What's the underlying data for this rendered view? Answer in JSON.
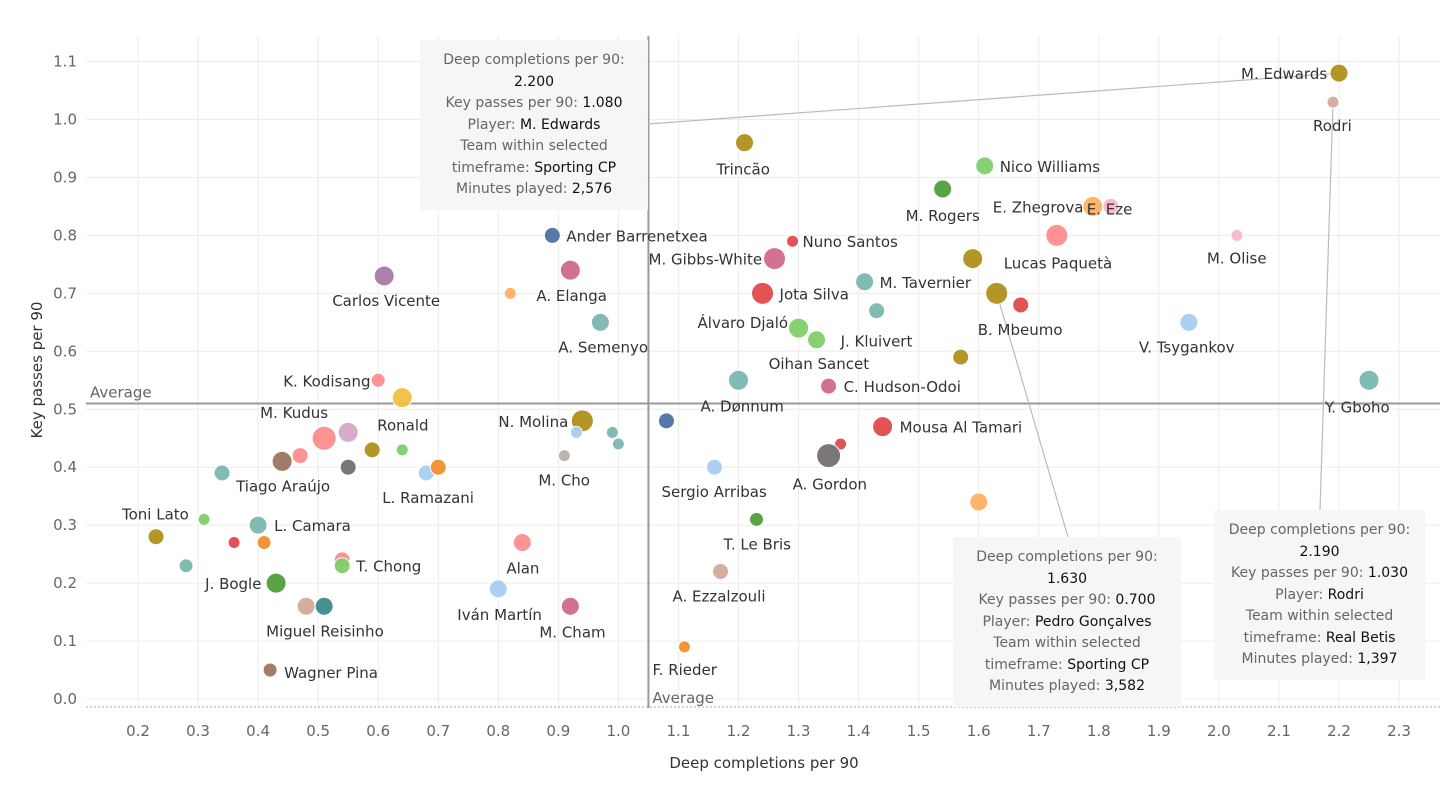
{
  "chart_data": {
    "type": "scatter",
    "xlabel": "Deep completions per 90",
    "ylabel": "Key passes per 90",
    "xlim": [
      0.09,
      2.37
    ],
    "ylim": [
      -0.015,
      1.16
    ],
    "x_ticks": [
      "0.2",
      "0.3",
      "0.4",
      "0.5",
      "0.6",
      "0.7",
      "0.8",
      "0.9",
      "1.0",
      "1.1",
      "1.2",
      "1.3",
      "1.4",
      "1.5",
      "1.6",
      "1.7",
      "1.8",
      "1.9",
      "2.0",
      "2.1",
      "2.2",
      "2.3"
    ],
    "y_ticks": [
      "0.0",
      "0.1",
      "0.2",
      "0.3",
      "0.4",
      "0.5",
      "0.6",
      "0.7",
      "0.8",
      "0.9",
      "1.0",
      "1.1"
    ],
    "grid": true,
    "averages": {
      "x": 1.05,
      "y": 0.51,
      "x_label": "Average",
      "y_label": "Average"
    },
    "points": [
      {
        "x": 2.2,
        "y": 1.08,
        "r": 9,
        "color": "#b0901a",
        "label": "M. Edwards",
        "lx": -98,
        "ly": 6
      },
      {
        "x": 2.19,
        "y": 1.03,
        "r": 6,
        "color": "#d4a99a",
        "label": "Rodri",
        "lx": -20,
        "ly": 29
      },
      {
        "x": 1.21,
        "y": 0.96,
        "r": 9,
        "color": "#b0901a",
        "label": "Trincão",
        "lx": -28,
        "ly": 32
      },
      {
        "x": 1.61,
        "y": 0.92,
        "r": 9,
        "color": "#7fd06a",
        "label": "Nico Williams",
        "lx": 15,
        "ly": 6
      },
      {
        "x": 1.54,
        "y": 0.88,
        "r": 9,
        "color": "#4f9f3a",
        "label": "M. Rogers",
        "lx": -37,
        "ly": 32
      },
      {
        "x": 1.79,
        "y": 0.85,
        "r": 10,
        "color": "#ffb060",
        "label": "E. Zhegrova",
        "lx": -100,
        "ly": 6
      },
      {
        "x": 1.82,
        "y": 0.85,
        "r": 8,
        "color": "#f9b8c8",
        "label": "",
        "lx": 0,
        "ly": 0
      },
      {
        "x": 1.73,
        "y": 0.8,
        "r": 11,
        "color": "#ff8c8c",
        "label": "E. Eze",
        "lx": 30,
        "ly": -21
      },
      {
        "x": 2.03,
        "y": 0.8,
        "r": 6,
        "color": "#f9b8c8",
        "label": "M. Olise",
        "lx": -30,
        "ly": 28
      },
      {
        "x": 1.59,
        "y": 0.76,
        "r": 10,
        "color": "#b0901a",
        "label": "Lucas Paquetà",
        "lx": 31,
        "ly": 10
      },
      {
        "x": 0.89,
        "y": 0.8,
        "r": 8,
        "color": "#4d72a8",
        "label": "Ander Barrenetxea",
        "lx": 14,
        "ly": 6
      },
      {
        "x": 1.29,
        "y": 0.79,
        "r": 6,
        "color": "#e04a4a",
        "label": "Nuno Santos",
        "lx": 10,
        "ly": 6
      },
      {
        "x": 1.26,
        "y": 0.76,
        "r": 11,
        "color": "#d06a8a",
        "label": "M. Gibbs-White",
        "lx": -126,
        "ly": 6
      },
      {
        "x": 0.92,
        "y": 0.74,
        "r": 10,
        "color": "#d06a8a",
        "label": "A. Elanga",
        "lx": -34,
        "ly": 31
      },
      {
        "x": 0.61,
        "y": 0.73,
        "r": 10,
        "color": "#a87aa8",
        "label": "Carlos Vicente",
        "lx": -52,
        "ly": 30
      },
      {
        "x": 0.82,
        "y": 0.7,
        "r": 6,
        "color": "#ffb060",
        "label": "",
        "lx": 0,
        "ly": 0
      },
      {
        "x": 1.24,
        "y": 0.7,
        "r": 11,
        "color": "#e04a4a",
        "label": "Jota Silva",
        "lx": 17,
        "ly": 6
      },
      {
        "x": 1.41,
        "y": 0.72,
        "r": 9,
        "color": "#7ab8b0",
        "label": "M. Tavernier",
        "lx": 15,
        "ly": 6
      },
      {
        "x": 1.43,
        "y": 0.67,
        "r": 8,
        "color": "#7ab8b0",
        "label": "",
        "lx": 0,
        "ly": 0
      },
      {
        "x": 1.63,
        "y": 0.7,
        "r": 11,
        "color": "#b0901a",
        "label": "",
        "lx": 0,
        "ly": 0
      },
      {
        "x": 1.67,
        "y": 0.68,
        "r": 8,
        "color": "#e04a4a",
        "label": "B. Mbeumo",
        "lx": -43,
        "ly": 30
      },
      {
        "x": 1.95,
        "y": 0.65,
        "r": 9,
        "color": "#a8cdf0",
        "label": "V. Tsygankov",
        "lx": -50,
        "ly": 30
      },
      {
        "x": 0.97,
        "y": 0.65,
        "r": 9,
        "color": "#7ab8b0",
        "label": "A. Semenyo",
        "lx": -42,
        "ly": 30
      },
      {
        "x": 1.3,
        "y": 0.64,
        "r": 10,
        "color": "#7fd06a",
        "label": "Álvaro Djaló",
        "lx": -101,
        "ly": 0
      },
      {
        "x": 1.33,
        "y": 0.62,
        "r": 9,
        "color": "#7fd06a",
        "label": "J. Kluivert",
        "lx": 24,
        "ly": 7
      },
      {
        "x": 1.57,
        "y": 0.59,
        "r": 8,
        "color": "#b0901a",
        "label": "",
        "lx": 0,
        "ly": 0
      },
      {
        "x": 1.35,
        "y": 0.54,
        "r": 8,
        "color": "#d06a8a",
        "label": "C. Hudson-Odoi",
        "lx": 15,
        "ly": 6
      },
      {
        "x": 1.35,
        "y": 0.54,
        "r": 0,
        "color": "#d06a8a",
        "label": "Oihan Sancet",
        "lx": -60,
        "ly": -17
      },
      {
        "x": 1.2,
        "y": 0.55,
        "r": 10,
        "color": "#7ab8b0",
        "label": "A. Dønnum",
        "lx": -38,
        "ly": 31
      },
      {
        "x": 2.25,
        "y": 0.55,
        "r": 10,
        "color": "#7ab8b0",
        "label": "Y. Gboho",
        "lx": -44,
        "ly": 32
      },
      {
        "x": 0.6,
        "y": 0.55,
        "r": 7,
        "color": "#ff8c8c",
        "label": "K. Kodisang",
        "lx": -95,
        "ly": 6
      },
      {
        "x": 0.64,
        "y": 0.52,
        "r": 10,
        "color": "#f0c040",
        "label": "Ronald",
        "lx": -25,
        "ly": 33
      },
      {
        "x": 0.94,
        "y": 0.48,
        "r": 11,
        "color": "#b0901a",
        "label": "N. Molina",
        "lx": -84,
        "ly": 6
      },
      {
        "x": 0.93,
        "y": 0.46,
        "r": 6,
        "color": "#a8cdf0",
        "label": "",
        "lx": 0,
        "ly": 0
      },
      {
        "x": 0.99,
        "y": 0.46,
        "r": 6,
        "color": "#7ab8b0",
        "label": "",
        "lx": 0,
        "ly": 0
      },
      {
        "x": 1.0,
        "y": 0.44,
        "r": 6,
        "color": "#7ab8b0",
        "label": "",
        "lx": 0,
        "ly": 0
      },
      {
        "x": 1.08,
        "y": 0.48,
        "r": 8,
        "color": "#4d72a8",
        "label": "",
        "lx": 0,
        "ly": 0
      },
      {
        "x": 0.91,
        "y": 0.42,
        "r": 6,
        "color": "#bab0ab",
        "label": "M. Cho",
        "lx": -26,
        "ly": 30
      },
      {
        "x": 1.44,
        "y": 0.47,
        "r": 10,
        "color": "#e04a4a",
        "label": "Mousa Al Tamari",
        "lx": 17,
        "ly": 6
      },
      {
        "x": 1.37,
        "y": 0.44,
        "r": 6,
        "color": "#e04a4a",
        "label": "",
        "lx": 0,
        "ly": 0
      },
      {
        "x": 1.35,
        "y": 0.42,
        "r": 12,
        "color": "#757070",
        "label": "A. Gordon",
        "lx": -36,
        "ly": 34
      },
      {
        "x": 1.16,
        "y": 0.4,
        "r": 8,
        "color": "#a8cdf0",
        "label": "Sergio Arribas",
        "lx": -53,
        "ly": 30
      },
      {
        "x": 0.51,
        "y": 0.45,
        "r": 12,
        "color": "#ff8c8c",
        "label": "M. Kudus",
        "lx": -64,
        "ly": -20
      },
      {
        "x": 0.55,
        "y": 0.46,
        "r": 10,
        "color": "#d4a6c8",
        "label": "",
        "lx": 0,
        "ly": 0
      },
      {
        "x": 0.44,
        "y": 0.41,
        "r": 10,
        "color": "#9c755f",
        "label": "Tiago Araújo",
        "lx": -46,
        "ly": 30
      },
      {
        "x": 0.47,
        "y": 0.42,
        "r": 8,
        "color": "#ff8c8c",
        "label": "",
        "lx": 0,
        "ly": 0
      },
      {
        "x": 0.55,
        "y": 0.4,
        "r": 8,
        "color": "#757070",
        "label": "",
        "lx": 0,
        "ly": 0
      },
      {
        "x": 0.59,
        "y": 0.43,
        "r": 8,
        "color": "#b0901a",
        "label": "",
        "lx": 0,
        "ly": 0
      },
      {
        "x": 0.64,
        "y": 0.43,
        "r": 6,
        "color": "#7fd06a",
        "label": "",
        "lx": 0,
        "ly": 0
      },
      {
        "x": 0.34,
        "y": 0.39,
        "r": 8,
        "color": "#7ab8b0",
        "label": "",
        "lx": 0,
        "ly": 0
      },
      {
        "x": 0.68,
        "y": 0.39,
        "r": 8,
        "color": "#a8cdf0",
        "label": "L. Ramazani",
        "lx": -44,
        "ly": 30
      },
      {
        "x": 0.7,
        "y": 0.4,
        "r": 8,
        "color": "#f28e2b",
        "label": "",
        "lx": 0,
        "ly": 0
      },
      {
        "x": 1.6,
        "y": 0.34,
        "r": 9,
        "color": "#ffb060",
        "label": "",
        "lx": 0,
        "ly": 0
      },
      {
        "x": 0.23,
        "y": 0.28,
        "r": 8,
        "color": "#b0901a",
        "label": "Toni Lato",
        "lx": -34,
        "ly": -17
      },
      {
        "x": 0.31,
        "y": 0.31,
        "r": 6,
        "color": "#7fd06a",
        "label": "",
        "lx": 0,
        "ly": 0
      },
      {
        "x": 0.4,
        "y": 0.3,
        "r": 9,
        "color": "#7ab8b0",
        "label": "L. Camara",
        "lx": 16,
        "ly": 6
      },
      {
        "x": 0.36,
        "y": 0.27,
        "r": 6,
        "color": "#e04a4a",
        "label": "",
        "lx": 0,
        "ly": 0
      },
      {
        "x": 0.41,
        "y": 0.27,
        "r": 7,
        "color": "#f28e2b",
        "label": "",
        "lx": 0,
        "ly": 0
      },
      {
        "x": 0.28,
        "y": 0.23,
        "r": 7,
        "color": "#7ab8b0",
        "label": "",
        "lx": 0,
        "ly": 0
      },
      {
        "x": 0.54,
        "y": 0.24,
        "r": 8,
        "color": "#ff8c8c",
        "label": "",
        "lx": 0,
        "ly": 0
      },
      {
        "x": 0.54,
        "y": 0.23,
        "r": 8,
        "color": "#7fd06a",
        "label": "T. Chong",
        "lx": 14,
        "ly": 6
      },
      {
        "x": 0.43,
        "y": 0.2,
        "r": 10,
        "color": "#4f9f3a",
        "label": "J. Bogle",
        "lx": -71,
        "ly": 6
      },
      {
        "x": 0.84,
        "y": 0.27,
        "r": 9,
        "color": "#ff8c8c",
        "label": "Alan",
        "lx": -16,
        "ly": 31
      },
      {
        "x": 1.23,
        "y": 0.31,
        "r": 7,
        "color": "#4f9f3a",
        "label": "T. Le Bris",
        "lx": -33,
        "ly": 30
      },
      {
        "x": 1.17,
        "y": 0.22,
        "r": 8,
        "color": "#d4a99a",
        "label": "A. Ezzalzouli",
        "lx": -48,
        "ly": 30
      },
      {
        "x": 0.48,
        "y": 0.16,
        "r": 9,
        "color": "#d4a99a",
        "label": "Miguel Reisinho",
        "lx": -40,
        "ly": 30
      },
      {
        "x": 0.51,
        "y": 0.16,
        "r": 9,
        "color": "#3b8a8a",
        "label": "",
        "lx": 0,
        "ly": 0
      },
      {
        "x": 0.8,
        "y": 0.19,
        "r": 9,
        "color": "#a8cdf0",
        "label": "Iván Martín",
        "lx": -41,
        "ly": 31
      },
      {
        "x": 0.92,
        "y": 0.16,
        "r": 9,
        "color": "#d06a8a",
        "label": "M. Cham",
        "lx": -31,
        "ly": 31
      },
      {
        "x": 1.11,
        "y": 0.09,
        "r": 6,
        "color": "#f28e2b",
        "label": "F. Rieder",
        "lx": -32,
        "ly": 28
      },
      {
        "x": 0.42,
        "y": 0.05,
        "r": 7,
        "color": "#9c755f",
        "label": "Wagner Pina",
        "lx": 14,
        "ly": 8
      }
    ]
  },
  "tooltips": [
    {
      "key": "edwards",
      "lines": [
        {
          "k": "Deep completions per 90:",
          "v": ""
        },
        {
          "k": "",
          "v": "2.200"
        },
        {
          "k": "Key passes per 90: ",
          "v": "1.080"
        },
        {
          "k": "Player: ",
          "v": "M. Edwards"
        },
        {
          "k": "Team within selected",
          "v": ""
        },
        {
          "k": "timeframe: ",
          "v": "Sporting CP"
        },
        {
          "k": "Minutes played: ",
          "v": "2,576"
        }
      ]
    },
    {
      "key": "goncalves",
      "lines": [
        {
          "k": "Deep completions per 90:",
          "v": ""
        },
        {
          "k": "",
          "v": "1.630"
        },
        {
          "k": "Key passes per 90: ",
          "v": "0.700"
        },
        {
          "k": "Player: ",
          "v": "Pedro Gonçalves"
        },
        {
          "k": "Team within selected",
          "v": ""
        },
        {
          "k": "timeframe: ",
          "v": "Sporting CP"
        },
        {
          "k": "Minutes played: ",
          "v": "3,582"
        }
      ]
    },
    {
      "key": "rodri",
      "lines": [
        {
          "k": "Deep completions per 90:",
          "v": ""
        },
        {
          "k": "",
          "v": "2.190"
        },
        {
          "k": "Key passes per 90: ",
          "v": "1.030"
        },
        {
          "k": "Player: ",
          "v": "Rodri"
        },
        {
          "k": "Team within selected",
          "v": ""
        },
        {
          "k": "timeframe: ",
          "v": "Real Betis"
        },
        {
          "k": "Minutes played: ",
          "v": "1,397"
        }
      ]
    }
  ]
}
